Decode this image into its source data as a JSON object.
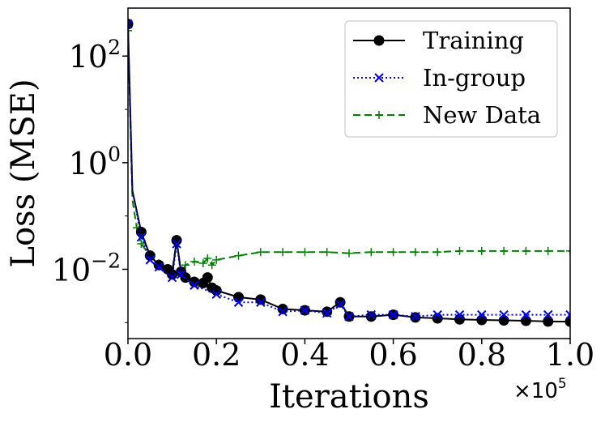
{
  "chart_data": {
    "type": "line",
    "yscale": "log",
    "xlabel": "Iterations",
    "ylabel": "Loss (MSE)",
    "xlim": [
      0,
      1.0
    ],
    "ylim_log10": [
      -3.3,
      2.9
    ],
    "x_offset_label": "×10",
    "x_offset_exponent": "5",
    "x_ticks": [
      {
        "value": 0.0,
        "label": "0.0"
      },
      {
        "value": 0.2,
        "label": "0.2"
      },
      {
        "value": 0.4,
        "label": "0.4"
      },
      {
        "value": 0.6,
        "label": "0.6"
      },
      {
        "value": 0.8,
        "label": "0.8"
      },
      {
        "value": 1.0,
        "label": "1.0"
      }
    ],
    "y_ticks": [
      {
        "exp": 2,
        "base": "10",
        "sup": "2"
      },
      {
        "exp": 0,
        "base": "10",
        "sup": "0"
      },
      {
        "exp": -2,
        "base": "10",
        "sup": "−2"
      }
    ],
    "legend_position": "top-right",
    "series": [
      {
        "name": "Training",
        "color": "#000000",
        "style": "solid",
        "marker": "circle",
        "x": [
          0.0,
          0.01,
          0.03,
          0.05,
          0.07,
          0.09,
          0.1,
          0.11,
          0.12,
          0.13,
          0.15,
          0.17,
          0.18,
          0.19,
          0.2,
          0.25,
          0.3,
          0.35,
          0.4,
          0.45,
          0.48,
          0.5,
          0.55,
          0.6,
          0.65,
          0.7,
          0.75,
          0.8,
          0.85,
          0.9,
          0.95,
          1.0
        ],
        "y": [
          400,
          0.3,
          0.05,
          0.018,
          0.012,
          0.01,
          0.008,
          0.035,
          0.009,
          0.007,
          0.0058,
          0.0055,
          0.007,
          0.0045,
          0.004,
          0.003,
          0.0027,
          0.0018,
          0.0017,
          0.0016,
          0.0024,
          0.0013,
          0.0013,
          0.0014,
          0.00125,
          0.0012,
          0.00115,
          0.00112,
          0.0011,
          0.00108,
          0.00105,
          0.00104
        ]
      },
      {
        "name": "In-group",
        "color": "#0000ee",
        "style": "dotted",
        "marker": "x",
        "x": [
          0.0,
          0.01,
          0.03,
          0.05,
          0.07,
          0.1,
          0.11,
          0.12,
          0.15,
          0.2,
          0.25,
          0.3,
          0.35,
          0.4,
          0.45,
          0.48,
          0.5,
          0.55,
          0.6,
          0.65,
          0.7,
          0.75,
          0.8,
          0.85,
          0.9,
          0.95,
          1.0
        ],
        "y": [
          400,
          0.3,
          0.04,
          0.015,
          0.011,
          0.007,
          0.03,
          0.008,
          0.005,
          0.0034,
          0.0024,
          0.0024,
          0.0016,
          0.0017,
          0.0015,
          0.0022,
          0.0013,
          0.0014,
          0.0014,
          0.0013,
          0.0014,
          0.0014,
          0.0014,
          0.0014,
          0.0014,
          0.0014,
          0.0014
        ]
      },
      {
        "name": "New Data",
        "color": "#008000",
        "style": "dashed",
        "marker": "plus",
        "x": [
          0.0,
          0.01,
          0.02,
          0.03,
          0.05,
          0.07,
          0.09,
          0.1,
          0.11,
          0.12,
          0.13,
          0.15,
          0.17,
          0.18,
          0.19,
          0.2,
          0.25,
          0.3,
          0.35,
          0.4,
          0.45,
          0.5,
          0.55,
          0.6,
          0.65,
          0.7,
          0.75,
          0.8,
          0.85,
          0.9,
          0.95,
          1.0
        ],
        "y": [
          300,
          0.2,
          0.06,
          0.03,
          0.018,
          0.013,
          0.01,
          0.009,
          0.035,
          0.008,
          0.012,
          0.014,
          0.013,
          0.016,
          0.012,
          0.015,
          0.018,
          0.021,
          0.021,
          0.021,
          0.021,
          0.02,
          0.021,
          0.021,
          0.021,
          0.021,
          0.022,
          0.022,
          0.022,
          0.022,
          0.022,
          0.022
        ]
      }
    ]
  }
}
